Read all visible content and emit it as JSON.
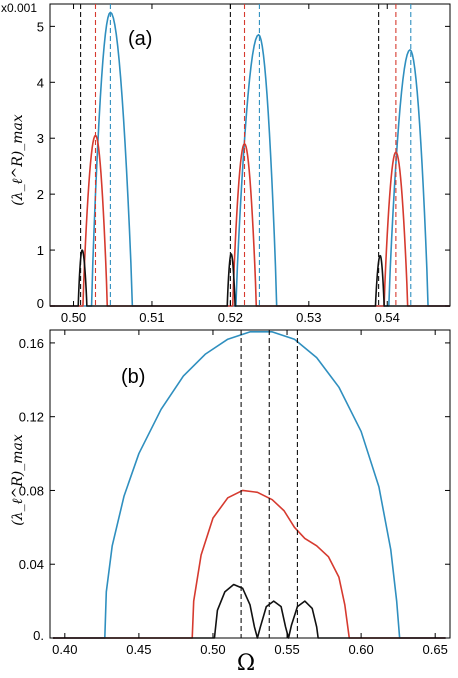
{
  "colors": {
    "blue": "#2f8fbf",
    "red": "#d63a2f",
    "black": "#111111"
  },
  "chart_data": [
    {
      "type": "line",
      "panel_label": "(a)",
      "ylabel": "(λ_ℓ^R)_max",
      "y_multiplier": "x0.001",
      "xlim": [
        0.497,
        0.548
      ],
      "ylim": [
        0,
        5.4
      ],
      "xticks": [
        0.5,
        0.51,
        0.52,
        0.53,
        0.54
      ],
      "xtick_labels": [
        "0.50",
        "0.51",
        "0.52",
        "0.53",
        "0.54"
      ],
      "yticks": [
        0,
        1,
        2,
        3,
        4,
        5
      ],
      "ytick_labels": [
        "0",
        "1",
        "2",
        "3",
        "4",
        "5"
      ],
      "grid": false,
      "series": [
        {
          "color": "blue",
          "values_unit": "x0.001",
          "arcs": [
            {
              "x0": 0.5023,
              "x1": 0.5075,
              "peak_x": 0.5047,
              "peak_y": 5.25
            },
            {
              "x0": 0.5207,
              "x1": 0.5259,
              "peak_x": 0.5236,
              "peak_y": 4.85
            },
            {
              "x0": 0.5402,
              "x1": 0.5452,
              "peak_x": 0.5429,
              "peak_y": 4.58
            }
          ]
        },
        {
          "color": "red",
          "arcs": [
            {
              "x0": 0.5012,
              "x1": 0.5043,
              "peak_x": 0.5028,
              "peak_y": 3.05
            },
            {
              "x0": 0.5203,
              "x1": 0.5233,
              "peak_x": 0.5218,
              "peak_y": 2.9
            },
            {
              "x0": 0.5396,
              "x1": 0.5426,
              "peak_x": 0.5411,
              "peak_y": 2.75
            }
          ]
        },
        {
          "color": "black",
          "arcs": [
            {
              "x0": 0.5006,
              "x1": 0.5017,
              "peak_x": 0.5011,
              "peak_y": 1.0
            },
            {
              "x0": 0.5196,
              "x1": 0.5206,
              "peak_x": 0.5201,
              "peak_y": 0.93
            },
            {
              "x0": 0.5385,
              "x1": 0.5396,
              "peak_x": 0.5391,
              "peak_y": 0.9
            }
          ]
        }
      ],
      "vlines": [
        {
          "x": 0.5009,
          "color": "black"
        },
        {
          "x": 0.5028,
          "color": "red"
        },
        {
          "x": 0.5047,
          "color": "blue"
        },
        {
          "x": 0.52,
          "color": "black"
        },
        {
          "x": 0.5218,
          "color": "red"
        },
        {
          "x": 0.5237,
          "color": "blue"
        },
        {
          "x": 0.5389,
          "color": "black"
        },
        {
          "x": 0.5411,
          "color": "red"
        },
        {
          "x": 0.543,
          "color": "blue"
        }
      ]
    },
    {
      "type": "line",
      "panel_label": "(b)",
      "ylabel": "(λ_ℓ^R)_max",
      "xlabel": "Ω",
      "xlim": [
        0.39,
        0.66
      ],
      "ylim": [
        0,
        0.167
      ],
      "xticks": [
        0.4,
        0.45,
        0.5,
        0.55,
        0.6,
        0.65
      ],
      "xtick_labels": [
        "0.40",
        "0.45",
        "0.50",
        "0.55",
        "0.60",
        "0.65"
      ],
      "yticks": [
        0,
        0.04,
        0.08,
        0.12,
        0.16
      ],
      "ytick_labels": [
        "0.",
        "0.04",
        "0.08",
        "0.12",
        "0.16"
      ],
      "grid": false,
      "series": [
        {
          "color": "blue",
          "points": [
            [
              0.427,
              0
            ],
            [
              0.428,
              0.025
            ],
            [
              0.432,
              0.05
            ],
            [
              0.44,
              0.077
            ],
            [
              0.45,
              0.1
            ],
            [
              0.465,
              0.124
            ],
            [
              0.48,
              0.142
            ],
            [
              0.495,
              0.154
            ],
            [
              0.51,
              0.162
            ],
            [
              0.525,
              0.166
            ],
            [
              0.54,
              0.166
            ],
            [
              0.555,
              0.162
            ],
            [
              0.57,
              0.152
            ],
            [
              0.585,
              0.136
            ],
            [
              0.6,
              0.112
            ],
            [
              0.612,
              0.082
            ],
            [
              0.62,
              0.048
            ],
            [
              0.624,
              0.02
            ],
            [
              0.626,
              0
            ]
          ]
        },
        {
          "color": "red",
          "points": [
            [
              0.486,
              0
            ],
            [
              0.487,
              0.02
            ],
            [
              0.492,
              0.045
            ],
            [
              0.5,
              0.065
            ],
            [
              0.51,
              0.076
            ],
            [
              0.52,
              0.08
            ],
            [
              0.53,
              0.079
            ],
            [
              0.54,
              0.075
            ],
            [
              0.548,
              0.069
            ],
            [
              0.555,
              0.06
            ],
            [
              0.562,
              0.054
            ],
            [
              0.57,
              0.05
            ],
            [
              0.578,
              0.044
            ],
            [
              0.585,
              0.033
            ],
            [
              0.589,
              0.018
            ],
            [
              0.592,
              0
            ]
          ]
        },
        {
          "color": "black",
          "points": [
            [
              0.501,
              0
            ],
            [
              0.503,
              0.015
            ],
            [
              0.508,
              0.025
            ],
            [
              0.514,
              0.029
            ],
            [
              0.52,
              0.027
            ],
            [
              0.525,
              0.018
            ],
            [
              0.528,
              0.006
            ],
            [
              0.53,
              0
            ],
            [
              0.532,
              0.006
            ],
            [
              0.536,
              0.017
            ],
            [
              0.541,
              0.02
            ],
            [
              0.546,
              0.017
            ],
            [
              0.549,
              0.006
            ],
            [
              0.551,
              0
            ],
            [
              0.553,
              0.007
            ],
            [
              0.557,
              0.017
            ],
            [
              0.562,
              0.02
            ],
            [
              0.567,
              0.016
            ],
            [
              0.57,
              0.006
            ],
            [
              0.571,
              0
            ]
          ]
        }
      ],
      "vlines": [
        {
          "x": 0.519,
          "color": "black"
        },
        {
          "x": 0.538,
          "color": "black"
        },
        {
          "x": 0.557,
          "color": "black"
        }
      ]
    }
  ]
}
